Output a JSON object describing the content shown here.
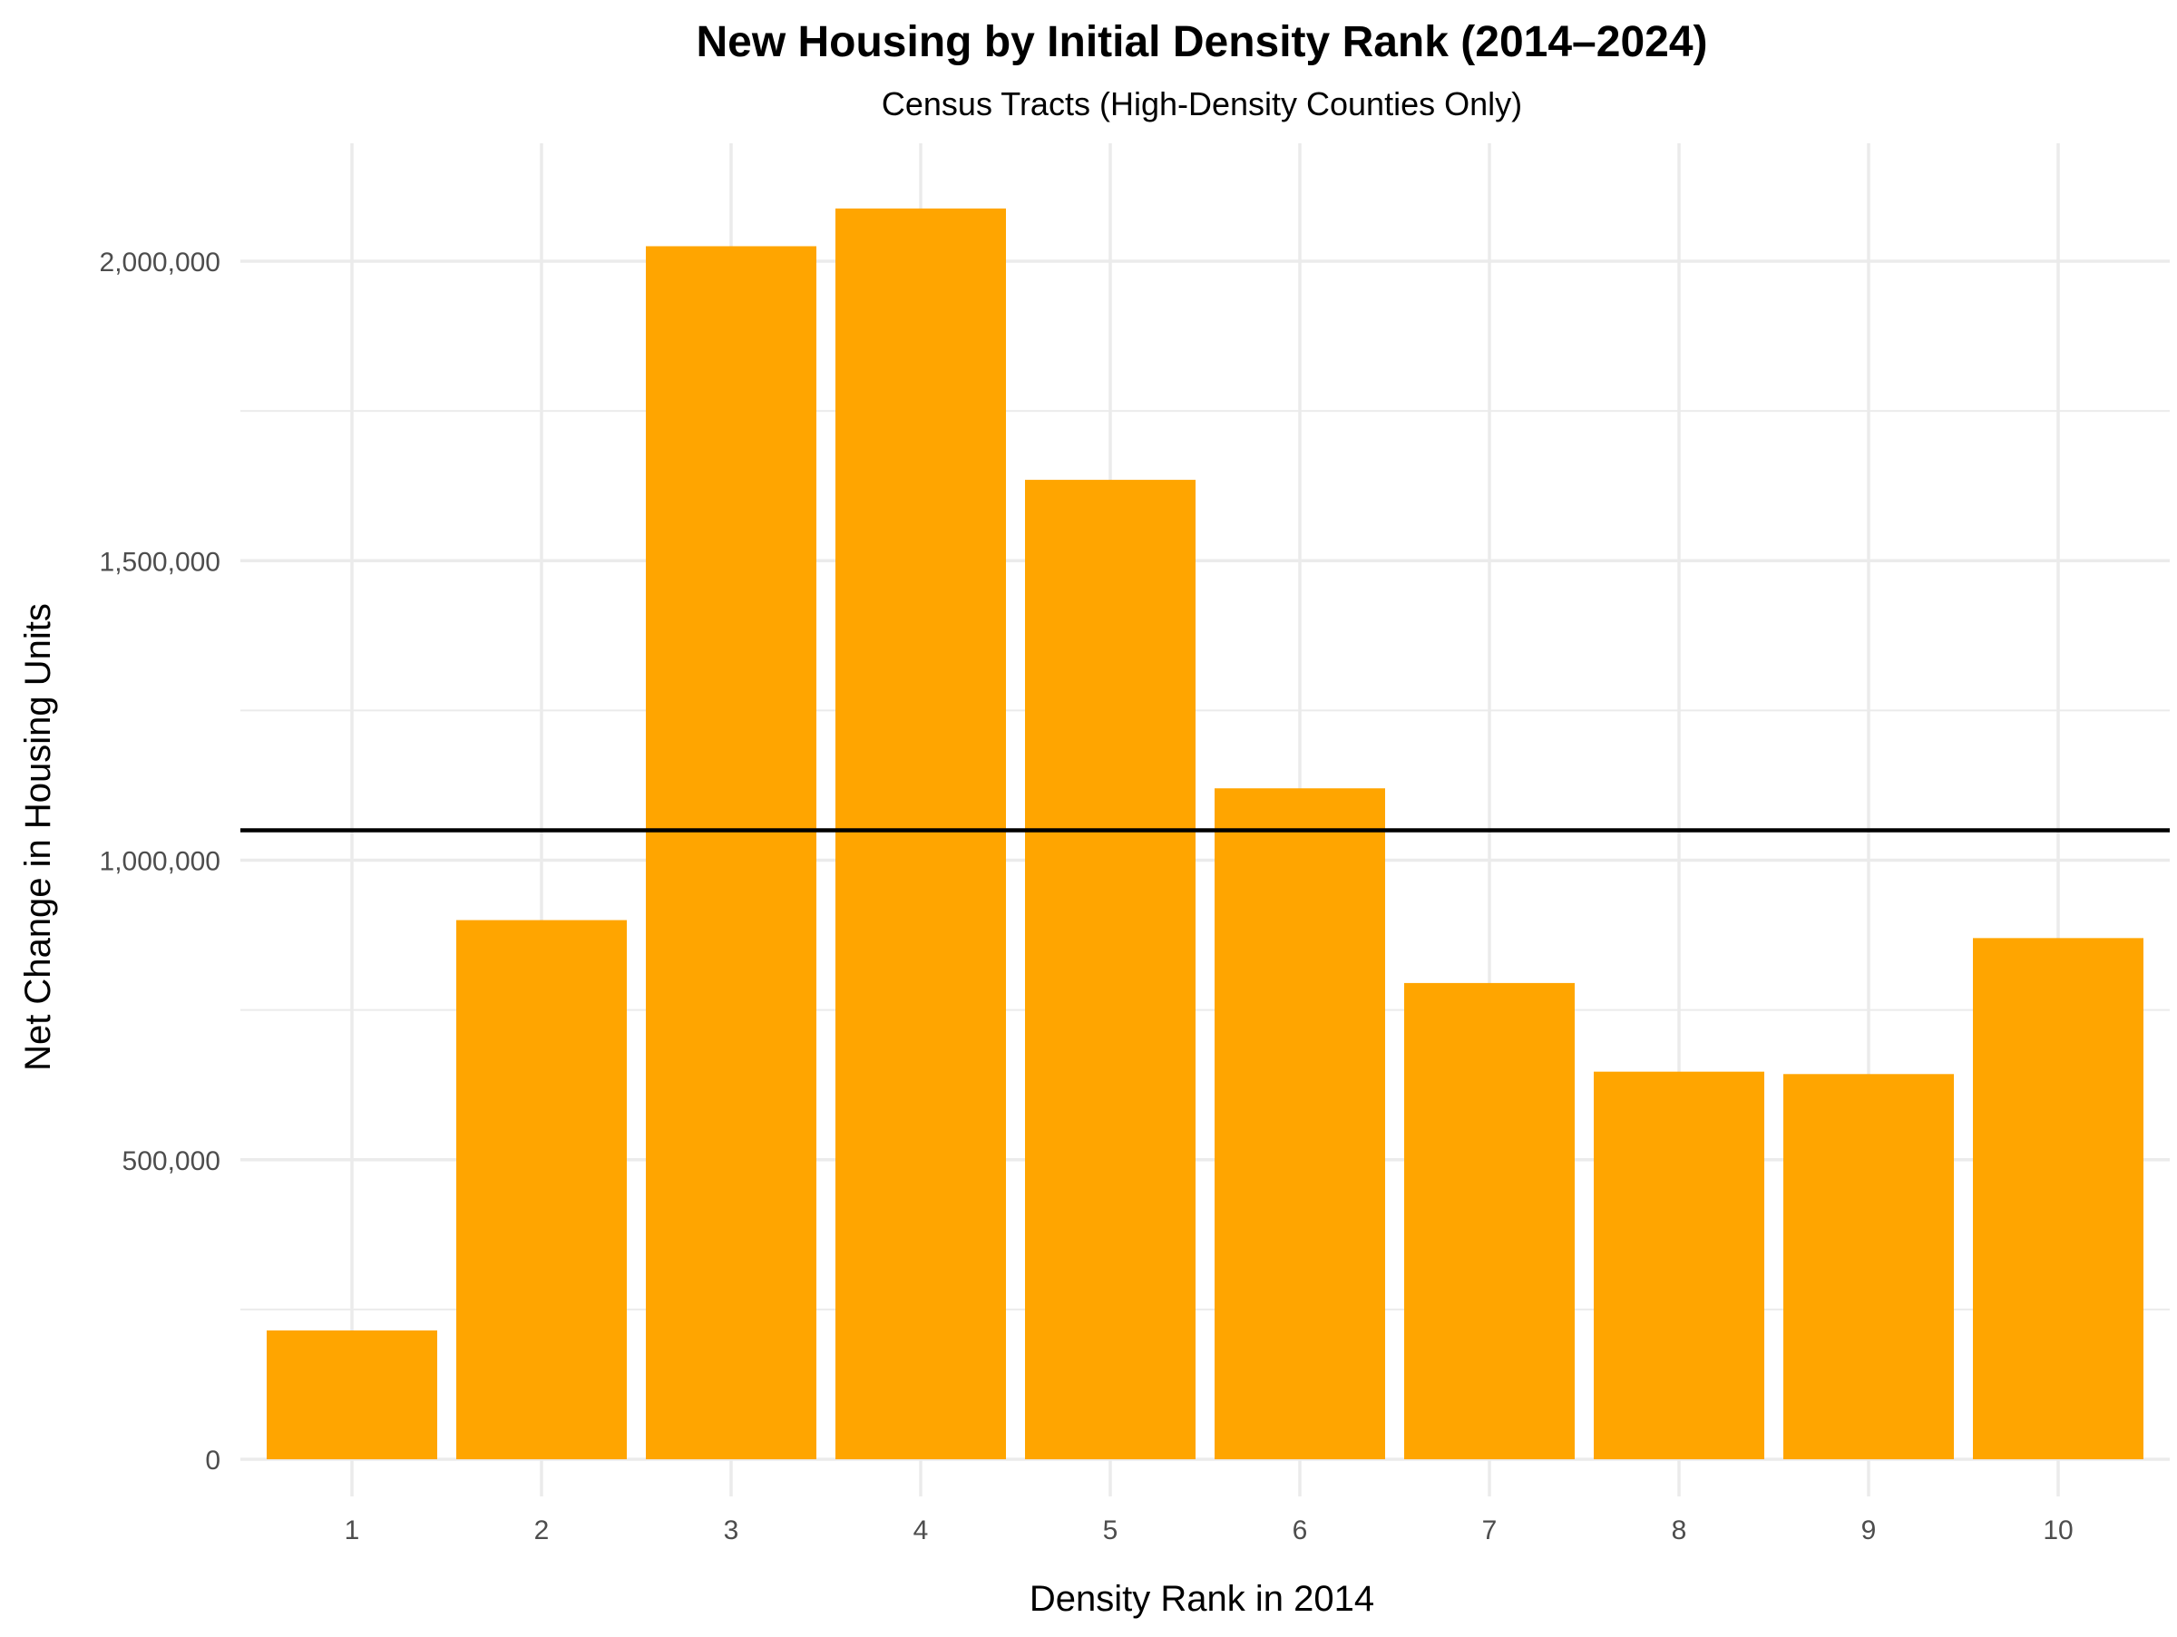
{
  "chart_data": {
    "type": "bar",
    "title": "New Housing by Initial Density Rank (2014–2024)",
    "subtitle": "Census Tracts (High-Density Counties Only)",
    "xlabel": "Density Rank in 2014",
    "ylabel": "Net Change in Housing Units",
    "categories": [
      "1",
      "2",
      "3",
      "4",
      "5",
      "6",
      "7",
      "8",
      "9",
      "10"
    ],
    "values": [
      215000,
      900000,
      2025000,
      2088000,
      1635000,
      1120000,
      795000,
      647000,
      643000,
      870000
    ],
    "ylim": [
      0,
      2200000
    ],
    "y_ticks": [
      {
        "value": 0,
        "label": "0"
      },
      {
        "value": 500000,
        "label": "500,000"
      },
      {
        "value": 1000000,
        "label": "1,000,000"
      },
      {
        "value": 1500000,
        "label": "1,500,000"
      },
      {
        "value": 2000000,
        "label": "2,000,000"
      }
    ],
    "y_minor_ticks": [
      250000,
      750000,
      1250000,
      1750000
    ],
    "reference_line": {
      "value": 1050000
    },
    "bar_color": "#FFA500",
    "reference_line_color": "#000000",
    "grid": true,
    "grid_color": "#EBEBEB",
    "legend": false
  }
}
